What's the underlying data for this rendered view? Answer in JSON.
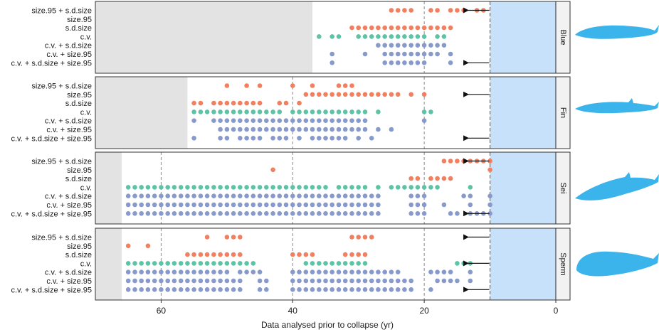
{
  "chart_data": {
    "type": "scatter",
    "title": "",
    "xlabel": "Data analysed prior to collapse (yr)",
    "xlim": [
      70,
      0
    ],
    "xticks": [
      60,
      40,
      20,
      0
    ],
    "xtick_labels": [
      "60",
      "40",
      "20",
      "0"
    ],
    "reference_lines": [
      20,
      40,
      60
    ],
    "collapse_window_years": 10,
    "row_labels": [
      "size.95 + s.d.size",
      "size.95",
      "s.d.size",
      "c.v.",
      "c.v. + s.d.size",
      "c.v. + size.95",
      "c.v. + s.d.size + size.95"
    ],
    "colors": {
      "size_metrics": "#f08060",
      "cv": "#5cc4a4",
      "combined": "#8899cc",
      "no_data_shade": "#e3e3e3",
      "collapse_shade": "#c7e1fb",
      "collapse_line": "#6b8fd6",
      "whale": "#3ab4ea",
      "strip_fill": "#f2f2f2"
    },
    "panels": [
      {
        "species": "Blue",
        "no_data_before": 37,
        "arrow_rows": [
          0,
          6
        ],
        "rows": [
          [
            25,
            24,
            23,
            22,
            19,
            18,
            16,
            15,
            14,
            12,
            11
          ],
          [],
          [
            31,
            30,
            29,
            28,
            27,
            26,
            25,
            24,
            23,
            22,
            21,
            20,
            19,
            18,
            17,
            16
          ],
          [
            36,
            34,
            33,
            30,
            29,
            28,
            27,
            26,
            25,
            24,
            23,
            22,
            21,
            20,
            18,
            17
          ],
          [
            27,
            26,
            25,
            24,
            23,
            22,
            21,
            20,
            19,
            18,
            17
          ],
          [
            34,
            29,
            26,
            25,
            24,
            23,
            22,
            21,
            20,
            19,
            18,
            16
          ],
          [
            34,
            26,
            25,
            24,
            23,
            22,
            21,
            20,
            16
          ]
        ]
      },
      {
        "species": "Fin",
        "no_data_before": 56,
        "arrow_rows": [
          1,
          6
        ],
        "rows": [
          [
            50,
            47,
            45,
            40,
            37,
            33,
            32,
            31
          ],
          [
            38,
            37,
            36,
            35,
            34,
            33,
            32,
            31,
            30,
            29,
            28,
            27,
            26,
            25,
            24,
            22,
            20
          ],
          [
            55,
            54,
            52,
            51,
            50,
            49,
            48,
            47,
            46,
            45,
            42,
            41,
            39
          ],
          [
            55,
            54,
            53,
            52,
            51,
            50,
            49,
            48,
            47,
            46,
            45,
            44,
            43,
            42,
            40,
            39,
            38,
            37,
            36,
            35,
            34,
            33,
            32,
            31,
            30,
            29,
            27,
            20,
            19
          ],
          [
            55,
            52,
            51,
            50,
            49,
            48,
            47,
            46,
            45,
            44,
            43,
            42,
            41,
            40,
            39,
            38,
            37,
            36,
            35,
            34,
            33,
            32,
            31,
            30,
            29,
            20
          ],
          [
            51,
            50,
            49,
            48,
            47,
            46,
            45,
            44,
            43,
            42,
            41,
            40,
            39,
            38,
            37,
            36,
            35,
            34,
            33,
            32,
            31,
            30,
            29,
            27,
            25
          ],
          [
            55,
            51,
            50,
            48,
            47,
            46,
            45,
            43,
            42,
            41,
            39,
            37,
            36,
            35,
            34,
            33,
            32,
            30,
            28
          ]
        ]
      },
      {
        "species": "Sei",
        "no_data_before": 66,
        "arrow_rows": [
          0,
          6
        ],
        "rows": [
          [
            17,
            16,
            15,
            14,
            13,
            12,
            11,
            10
          ],
          [
            43,
            10
          ],
          [
            22,
            21,
            19,
            18,
            17,
            16
          ],
          [
            65,
            64,
            63,
            62,
            61,
            60,
            59,
            58,
            57,
            56,
            55,
            54,
            53,
            52,
            51,
            50,
            49,
            48,
            47,
            46,
            45,
            44,
            43,
            42,
            41,
            40,
            39,
            38,
            37,
            36,
            35,
            33,
            32,
            31,
            30,
            29,
            27,
            25,
            24,
            23,
            22,
            21,
            20,
            19,
            18,
            13
          ],
          [
            65,
            64,
            63,
            62,
            61,
            60,
            59,
            58,
            57,
            56,
            55,
            54,
            53,
            52,
            51,
            50,
            49,
            48,
            47,
            46,
            45,
            44,
            43,
            42,
            41,
            40,
            39,
            38,
            37,
            36,
            35,
            34,
            33,
            32,
            31,
            30,
            29,
            28,
            27,
            22,
            21,
            20,
            14,
            13,
            10
          ],
          [
            65,
            64,
            63,
            62,
            61,
            60,
            59,
            58,
            57,
            56,
            55,
            54,
            53,
            52,
            51,
            50,
            49,
            48,
            47,
            46,
            45,
            44,
            43,
            42,
            41,
            40,
            39,
            38,
            37,
            36,
            35,
            34,
            33,
            32,
            31,
            30,
            29,
            28,
            27,
            22,
            21,
            20,
            17,
            13,
            10
          ],
          [
            65,
            64,
            63,
            62,
            61,
            60,
            59,
            58,
            57,
            56,
            55,
            54,
            53,
            52,
            51,
            50,
            49,
            48,
            47,
            46,
            45,
            44,
            43,
            42,
            41,
            40,
            39,
            38,
            37,
            36,
            35,
            34,
            33,
            32,
            31,
            30,
            29,
            28,
            27,
            22,
            21,
            20,
            16,
            15,
            13,
            12,
            11,
            10
          ]
        ]
      },
      {
        "species": "Sperm",
        "no_data_before": 66,
        "arrow_rows": [
          0,
          3,
          6
        ],
        "rows": [
          [
            53,
            50,
            49,
            48,
            31,
            30,
            29,
            28
          ],
          [
            65,
            62
          ],
          [
            56,
            55,
            54,
            53,
            52,
            51,
            50,
            49,
            48,
            40,
            39,
            38,
            37,
            32,
            31,
            30,
            29
          ],
          [
            65,
            64,
            63,
            62,
            61,
            60,
            59,
            58,
            57,
            56,
            55,
            54,
            53,
            52,
            51,
            50,
            49,
            48,
            47,
            46,
            38,
            37,
            36,
            35,
            34,
            33,
            32,
            31,
            30,
            29,
            15,
            14,
            13
          ],
          [
            65,
            64,
            63,
            62,
            61,
            60,
            59,
            58,
            57,
            56,
            55,
            54,
            53,
            52,
            51,
            50,
            48,
            47,
            46,
            45,
            40,
            39,
            38,
            37,
            36,
            35,
            34,
            33,
            32,
            31,
            30,
            29,
            28,
            27,
            26,
            25,
            24,
            19,
            18,
            17,
            16,
            13
          ],
          [
            65,
            64,
            63,
            62,
            61,
            60,
            59,
            58,
            57,
            56,
            55,
            54,
            53,
            52,
            51,
            50,
            49,
            48,
            45,
            44,
            40,
            39,
            38,
            37,
            36,
            35,
            34,
            33,
            32,
            31,
            30,
            29,
            28,
            27,
            26,
            25,
            24,
            23,
            22,
            18,
            17,
            16,
            15,
            13
          ],
          [
            65,
            64,
            63,
            62,
            61,
            60,
            59,
            58,
            57,
            56,
            55,
            54,
            53,
            52,
            51,
            50,
            49,
            48,
            45,
            44,
            40,
            39,
            38,
            37,
            36,
            35,
            34,
            33,
            32,
            31,
            30,
            29,
            28,
            27,
            26,
            25,
            24,
            23,
            22,
            19
          ]
        ]
      }
    ]
  }
}
